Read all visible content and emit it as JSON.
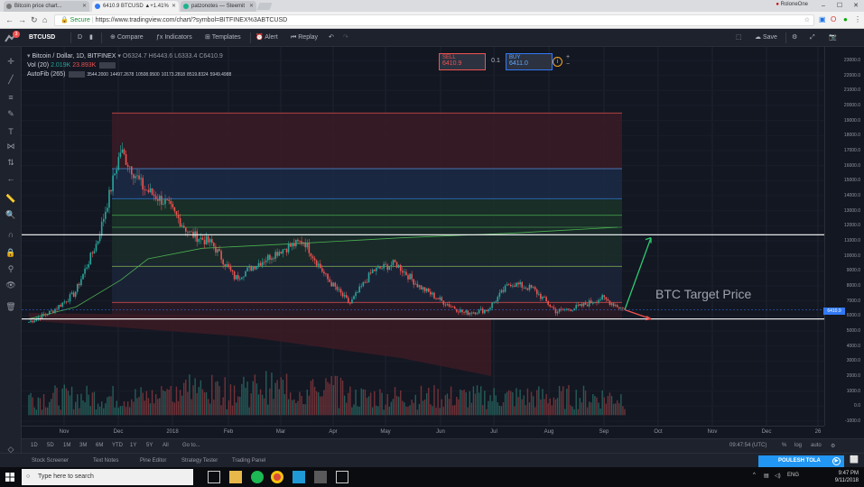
{
  "browser": {
    "tabs": [
      {
        "title": "Bitcoin price chart...",
        "active": false
      },
      {
        "title": "6410.9 BTCUSD ▲+1.41%",
        "active": true
      },
      {
        "title": "patzonotes — Steemit",
        "active": false
      }
    ],
    "profile_name": "RoloneOne",
    "url_secure_label": "Secure",
    "url": "https://www.tradingview.com/chart/?symbol=BITFINEX%3ABTCUSD"
  },
  "toolbar": {
    "symbol": "BTCUSD",
    "interval": "D",
    "compare": "Compare",
    "indicators": "Indicators",
    "templates": "Templates",
    "alert": "Alert",
    "replay": "Replay",
    "save": "Save",
    "notification_count": "3"
  },
  "legend": {
    "title": "Bitcoin / Dollar, 1D, BITFINEX",
    "ohlc": "O6324.7  H6443.6  L6333.4  C6410.9",
    "volume_label": "Vol (20)",
    "volume_values": [
      "2.019K",
      "23.893K"
    ],
    "autofib_label": "AutoFib (265)",
    "autofib_values": [
      {
        "text": "3544.2000",
        "color": "#ef5350"
      },
      {
        "text": "14497.2678",
        "color": "#5fa8ff"
      },
      {
        "text": "10508.9500",
        "color": "#4caf50"
      },
      {
        "text": "10173.2818",
        "color": "#8bc34a"
      },
      {
        "text": "8519.8324",
        "color": "#ef5350"
      },
      {
        "text": "5949.4988",
        "color": "#9e9e9e"
      }
    ]
  },
  "trade": {
    "sell_label": "SELL",
    "sell_price": "6410.9",
    "spread": "0.1",
    "buy_label": "BUY",
    "buy_price": "6411.0"
  },
  "annotation": "BTC Target Price",
  "price_axis": {
    "ticks": [
      "23000.0",
      "22000.0",
      "21000.0",
      "20000.0",
      "19000.0",
      "18000.0",
      "17000.0",
      "16000.0",
      "15000.0",
      "14000.0",
      "13000.0",
      "12000.0",
      "11000.0",
      "10000.0",
      "9000.0",
      "8000.0",
      "7000.0",
      "6000.0",
      "5000.0",
      "4000.0",
      "3000.0",
      "2000.0",
      "1000.0",
      "0.0",
      "-1000.0"
    ],
    "last_price": "6410.9"
  },
  "time_axis": [
    "Nov",
    "Dec",
    "2018",
    "Feb",
    "Mar",
    "Apr",
    "May",
    "Jun",
    "Jul",
    "Aug",
    "Sep",
    "Oct",
    "Nov",
    "Dec",
    "26"
  ],
  "range_bar": {
    "ranges": [
      "1D",
      "5D",
      "1M",
      "3M",
      "6M",
      "YTD",
      "1Y",
      "5Y",
      "All",
      "Go to..."
    ],
    "clock": "09:47:54 (UTC)",
    "options": [
      "%",
      "log",
      "auto"
    ]
  },
  "bottom_tabs": [
    "Stock Screener",
    "Text Notes",
    "Pine Editor",
    "Strategy Tester",
    "Trading Panel"
  ],
  "broker_button": "POULESH TOLA",
  "taskbar": {
    "search_placeholder": "Type here to search",
    "language": "ENG",
    "time": "9:47 PM",
    "date": "9/11/2018"
  },
  "colors": {
    "up": "#26a69a",
    "down": "#ef5350",
    "background": "#131722",
    "accent": "#2196f3"
  },
  "chart_data": {
    "type": "candlestick",
    "symbol": "BTCUSD",
    "exchange": "BITFINEX",
    "interval": "1D",
    "ylim": [
      -1000,
      23000
    ],
    "x_categories": [
      "Nov",
      "Dec",
      "2018",
      "Feb",
      "Mar",
      "Apr",
      "May",
      "Jun",
      "Jul",
      "Aug",
      "Sep",
      "Oct",
      "Nov",
      "Dec",
      "26"
    ],
    "price_path": {
      "months": [
        "Oct 2017",
        "Nov",
        "Nov mid",
        "Dec",
        "Dec mid",
        "Dec late",
        "2018",
        "Jan mid",
        "Jan late",
        "Feb",
        "Feb mid",
        "Feb late",
        "Mar",
        "Mar mid",
        "Apr",
        "Apr late",
        "May",
        "May late",
        "Jun",
        "Jun late",
        "Jul",
        "Jul late",
        "Aug",
        "Aug mid",
        "Aug late",
        "Sep",
        "Sep mid"
      ],
      "close": [
        5600,
        6300,
        7500,
        11000,
        17000,
        14500,
        13500,
        11500,
        10800,
        8500,
        9500,
        10400,
        11000,
        8500,
        6800,
        9000,
        9500,
        8000,
        7000,
        6200,
        6400,
        8200,
        7800,
        6300,
        6600,
        7200,
        6410
      ]
    },
    "levels": {
      "upper_line": 11400,
      "lower_line": 5800
    },
    "target_arrows": {
      "up_target": 11200,
      "down_target": 5800
    }
  }
}
